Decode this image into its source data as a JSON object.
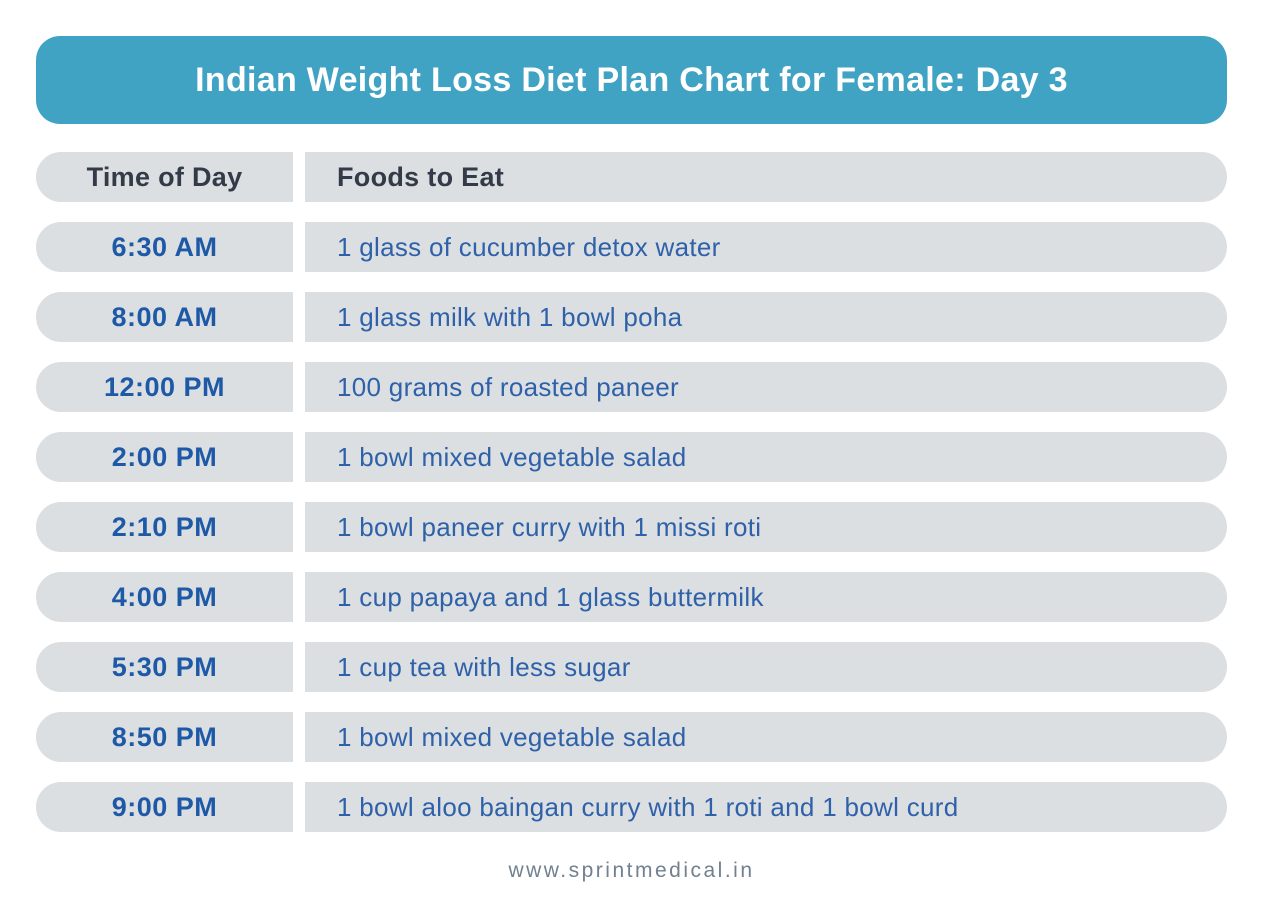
{
  "colors": {
    "title_bg": "#41A3C4",
    "row_bg": "#DCDFE1",
    "time_color": "#1D59A6",
    "food_color": "#2E61A9",
    "colhead_color": "#333B48",
    "footer_color": "#72808F",
    "title_color": "#FFFFFF"
  },
  "chart_data": {
    "type": "table",
    "title": "Indian Weight Loss Diet Plan Chart for Female: Day 3",
    "columns": [
      "Time of Day",
      "Foods to Eat"
    ],
    "rows": [
      {
        "time": "6:30 AM",
        "food": "1 glass of cucumber detox water"
      },
      {
        "time": "8:00 AM",
        "food": "1 glass milk with 1 bowl poha"
      },
      {
        "time": "12:00 PM",
        "food": "100 grams of roasted paneer"
      },
      {
        "time": "2:00 PM",
        "food": "1 bowl mixed vegetable salad"
      },
      {
        "time": "2:10 PM",
        "food": "1 bowl paneer curry with 1 missi roti"
      },
      {
        "time": "4:00 PM",
        "food": "1 cup papaya and 1 glass buttermilk"
      },
      {
        "time": "5:30 PM",
        "food": "1 cup tea with less sugar"
      },
      {
        "time": "8:50 PM",
        "food": "1 bowl mixed vegetable salad"
      },
      {
        "time": "9:00 PM",
        "food": "1 bowl aloo baingan curry with 1 roti and 1 bowl curd"
      }
    ],
    "source": "www.sprintmedical.in"
  }
}
